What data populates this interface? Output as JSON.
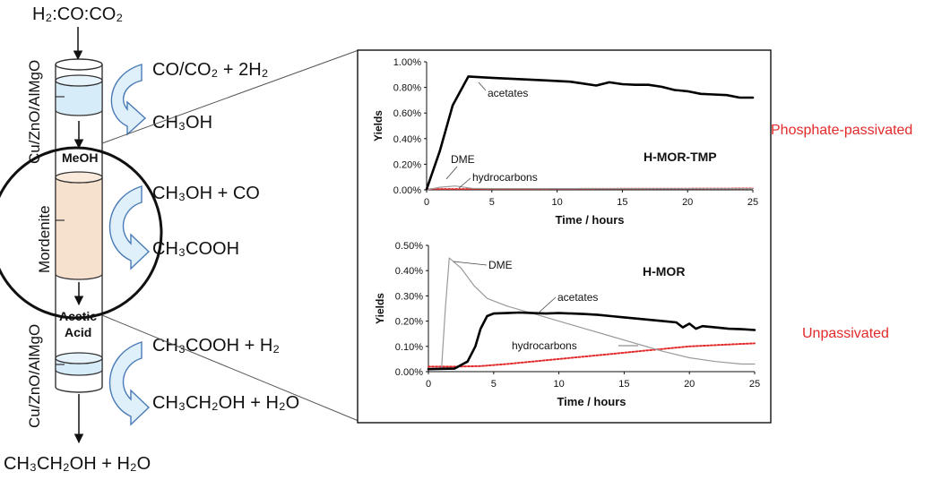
{
  "reactor": {
    "feed": "H₂:CO:CO₂",
    "product": "CH₃CH₂OH + H₂O",
    "catalyst_top": "Cu/ZnO/AlMgO",
    "catalyst_bottom": "Cu/ZnO/AlMgO",
    "mordenite": "Mordenite",
    "meoh": "MeOH",
    "acetic_line1": "Acetic",
    "acetic_line2": "Acid"
  },
  "reactions": {
    "r1_reactants": "CO/CO₂ + 2H₂",
    "r1_product": "CH₃OH",
    "r2_reactants": "CH₃OH + CO",
    "r2_product": "CH₃COOH",
    "r3_reactants": "CH₃COOH + H₂",
    "r3_product": "CH₃CH₂OH + H₂O"
  },
  "side_labels": {
    "top": "Phosphate-passivated",
    "bottom": "Unpassivated"
  },
  "colors": {
    "arrow_fill": "#dff0fb",
    "arrow_stroke": "#4a7bb7",
    "bed_blue": "#d6ecf8",
    "bed_tan": "#f6e1cf",
    "accent_red": "#e32a2a"
  },
  "chart_data": [
    {
      "type": "line",
      "title": "H-MOR-TMP",
      "xlabel": "Time / hours",
      "ylabel": "Yields",
      "xlim": [
        0,
        25
      ],
      "ylim": [
        0,
        1.0
      ],
      "xticks": [
        "0",
        "5",
        "10",
        "15",
        "20",
        "25"
      ],
      "yticks": [
        "0.00%",
        "0.20%",
        "0.40%",
        "0.60%",
        "0.80%",
        "1.00%"
      ],
      "series": [
        {
          "name": "acetates",
          "color": "#000000",
          "width": 2.6,
          "dash": "",
          "x": [
            0,
            1,
            2,
            3.2,
            5,
            7,
            9,
            11,
            12,
            13,
            14,
            15,
            16,
            17,
            18,
            19,
            20,
            21,
            22,
            23,
            24,
            25
          ],
          "y": [
            0.005,
            0.3,
            0.66,
            0.885,
            0.875,
            0.865,
            0.855,
            0.845,
            0.83,
            0.815,
            0.84,
            0.825,
            0.82,
            0.82,
            0.805,
            0.78,
            0.77,
            0.75,
            0.745,
            0.74,
            0.72,
            0.72
          ]
        },
        {
          "name": "DME",
          "color": "#9a9a9a",
          "width": 1.2,
          "dash": "",
          "x": [
            0,
            1,
            2.2,
            3.5,
            5,
            25
          ],
          "y": [
            0.0,
            0.02,
            0.03,
            0.012,
            0.01,
            0.01
          ]
        },
        {
          "name": "hydrocarbons",
          "color": "#e32a2a",
          "width": 1.8,
          "dash": "2,2",
          "x": [
            0,
            5,
            10,
            15,
            20,
            25
          ],
          "y": [
            0.006,
            0.007,
            0.008,
            0.009,
            0.01,
            0.011
          ]
        }
      ],
      "annotations": [
        {
          "text": "acetates",
          "series": "acetates"
        },
        {
          "text": "DME",
          "series": "DME"
        },
        {
          "text": "hydrocarbons",
          "series": "hydrocarbons"
        }
      ]
    },
    {
      "type": "line",
      "title": "H-MOR",
      "xlabel": "Time / hours",
      "ylabel": "Yields",
      "xlim": [
        0,
        25
      ],
      "ylim": [
        0,
        0.5
      ],
      "xticks": [
        "0",
        "5",
        "10",
        "15",
        "20",
        "25"
      ],
      "yticks": [
        "0.00%",
        "0.10%",
        "0.20%",
        "0.30%",
        "0.40%",
        "0.50%"
      ],
      "series": [
        {
          "name": "acetates",
          "color": "#000000",
          "width": 2.6,
          "dash": "",
          "x": [
            0,
            2,
            3,
            3.6,
            4,
            4.5,
            5,
            6,
            7,
            8,
            9,
            10,
            11,
            12,
            13,
            14,
            15,
            16,
            17,
            18,
            19,
            19.5,
            20,
            20.5,
            21,
            22,
            23,
            24,
            25
          ],
          "y": [
            0.01,
            0.012,
            0.04,
            0.1,
            0.17,
            0.22,
            0.23,
            0.232,
            0.234,
            0.232,
            0.23,
            0.232,
            0.23,
            0.228,
            0.225,
            0.22,
            0.215,
            0.21,
            0.205,
            0.2,
            0.195,
            0.175,
            0.19,
            0.17,
            0.18,
            0.175,
            0.17,
            0.168,
            0.165
          ]
        },
        {
          "name": "DME",
          "color": "#9a9a9a",
          "width": 1.2,
          "dash": "",
          "x": [
            0,
            1,
            1.3,
            1.6,
            2.5,
            3.5,
            4.5,
            6,
            8,
            10,
            12,
            14,
            16,
            18,
            20,
            22,
            24,
            25
          ],
          "y": [
            0.01,
            0.01,
            0.25,
            0.45,
            0.41,
            0.34,
            0.29,
            0.26,
            0.23,
            0.2,
            0.17,
            0.14,
            0.11,
            0.08,
            0.055,
            0.04,
            0.03,
            0.03
          ]
        },
        {
          "name": "hydrocarbons",
          "color": "#e32a2a",
          "width": 2.0,
          "dash": "2,2",
          "x": [
            0,
            2,
            4,
            6,
            8,
            10,
            12,
            14,
            16,
            18,
            20,
            22,
            24,
            25
          ],
          "y": [
            0.02,
            0.02,
            0.022,
            0.03,
            0.04,
            0.05,
            0.06,
            0.07,
            0.08,
            0.09,
            0.1,
            0.105,
            0.11,
            0.112
          ]
        }
      ],
      "annotations": [
        {
          "text": "DME",
          "series": "DME"
        },
        {
          "text": "acetates",
          "series": "acetates"
        },
        {
          "text": "hydrocarbons",
          "series": "hydrocarbons"
        }
      ]
    }
  ]
}
